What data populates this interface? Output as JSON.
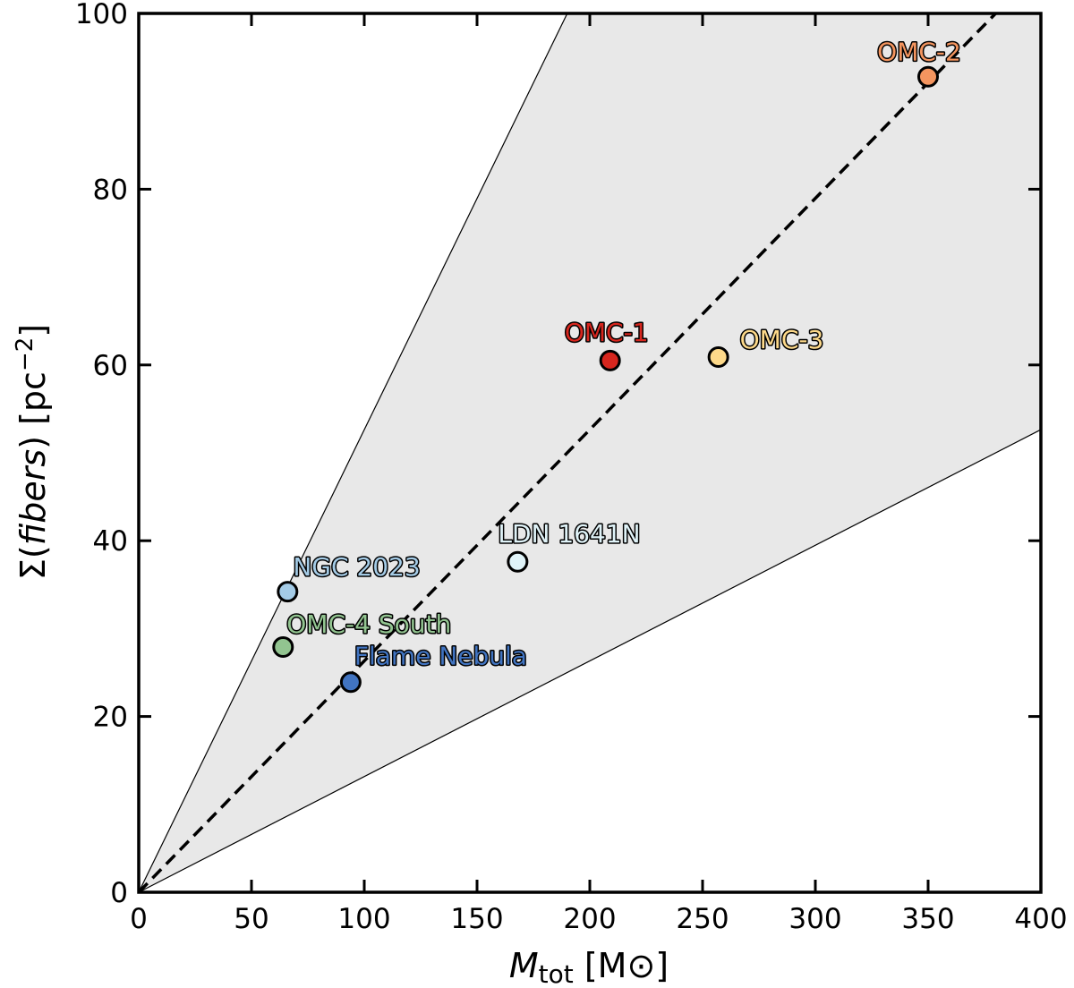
{
  "chart_data": {
    "type": "scatter",
    "title": "",
    "xlabel": "M_tot [M⊙]",
    "xlabel_main": "M",
    "xlabel_sub": "tot",
    "xlabel_unit": " [M⊙]",
    "ylabel": "Σ(fibers) [pc⁻²]",
    "ylabel_pre": "Σ(",
    "ylabel_italic": "fibers",
    "ylabel_post": ") [pc",
    "ylabel_sup": "−2",
    "ylabel_end": "]",
    "xlim": [
      0,
      400
    ],
    "ylim": [
      0,
      100
    ],
    "xticks": [
      0,
      50,
      100,
      150,
      200,
      250,
      300,
      350,
      400
    ],
    "yticks": [
      0,
      20,
      40,
      60,
      80,
      100
    ],
    "grid": false,
    "fit_line": {
      "style": "dashed",
      "slope": 0.2632,
      "color": "#000000"
    },
    "shaded_band": {
      "upper_slope": 0.5263,
      "lower_slope": 0.1316,
      "color": "#e8e8e8"
    },
    "points": [
      {
        "label": "OMC-2",
        "x": 350,
        "y": 92.8,
        "color": "#f4955f"
      },
      {
        "label": "OMC-1",
        "x": 209,
        "y": 60.5,
        "color": "#d7261e"
      },
      {
        "label": "OMC-3",
        "x": 257,
        "y": 60.9,
        "color": "#fdd98a"
      },
      {
        "label": "LDN 1641N",
        "x": 168,
        "y": 37.6,
        "color": "#e0f3f8"
      },
      {
        "label": "NGC 2023",
        "x": 66,
        "y": 34.2,
        "color": "#a4cbe6"
      },
      {
        "label": "OMC-4 South",
        "x": 64,
        "y": 27.9,
        "color": "#92c490"
      },
      {
        "label": "Flame Nebula",
        "x": 94,
        "y": 23.9,
        "color": "#4174c1"
      }
    ]
  }
}
